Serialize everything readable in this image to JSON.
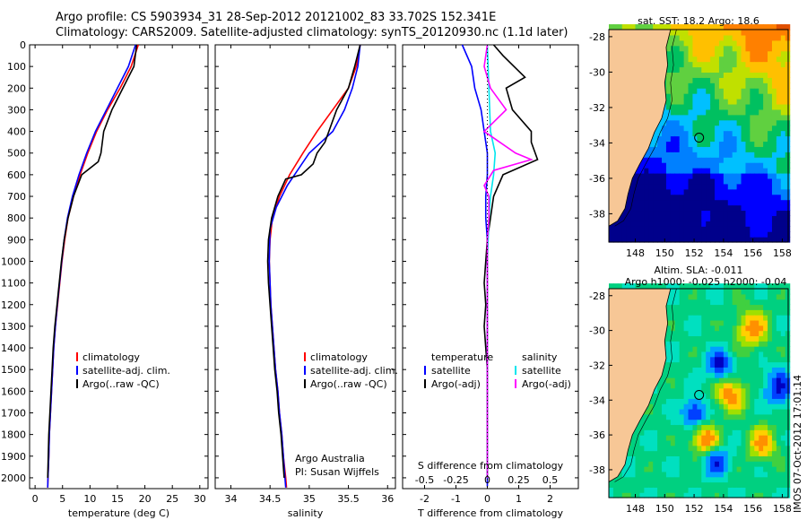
{
  "header": {
    "line1": "Argo profile: CS 5903934_31 28-Sep-2012 20121002_83 33.702S 152.341E",
    "line2": "Climatology: CARS2009. Satellite-adjusted climatology: synTS_20120930.nc (1.1d later)"
  },
  "footer_stamp": "IMOS 07-Oct-2012 17:01:14",
  "colors": {
    "climatology": "#ff0000",
    "satellite": "#0000ff",
    "argo": "#000000",
    "sal_satellite": "#00e5ee",
    "sal_argo": "#ff00ff",
    "land": "#f7c796"
  },
  "chart_data": [
    {
      "id": "temperature",
      "type": "line",
      "xlabel": "temperature (deg C)",
      "xlim": [
        -1,
        31.5
      ],
      "xticks": [
        "0",
        "5",
        "10",
        "15",
        "20",
        "25",
        "30"
      ],
      "ylim": [
        2050,
        0
      ],
      "yticks": [
        "0",
        "100",
        "200",
        "300",
        "400",
        "500",
        "600",
        "700",
        "800",
        "900",
        "1000",
        "1100",
        "1200",
        "1300",
        "1400",
        "1500",
        "1600",
        "1700",
        "1800",
        "1900",
        "2000"
      ],
      "legend": [
        "climatology",
        "satellite-adj. clim.",
        "Argo(..raw -QC)"
      ],
      "series": [
        {
          "name": "climatology",
          "color": "#ff0000",
          "points": [
            [
              18.8,
              0
            ],
            [
              17.5,
              100
            ],
            [
              15.5,
              200
            ],
            [
              13.2,
              300
            ],
            [
              11.2,
              400
            ],
            [
              9.6,
              500
            ],
            [
              8.2,
              600
            ],
            [
              7,
              700
            ],
            [
              6,
              800
            ],
            [
              5.4,
              900
            ],
            [
              4.9,
              1000
            ],
            [
              4.5,
              1100
            ],
            [
              4.1,
              1200
            ],
            [
              3.7,
              1300
            ],
            [
              3.4,
              1400
            ],
            [
              3.2,
              1500
            ],
            [
              3,
              1600
            ],
            [
              2.8,
              1700
            ],
            [
              2.6,
              1800
            ],
            [
              2.5,
              1900
            ],
            [
              2.35,
              2000
            ],
            [
              2.3,
              2045
            ]
          ]
        },
        {
          "name": "satellite-adj. clim.",
          "color": "#0000ff",
          "points": [
            [
              18.3,
              0
            ],
            [
              17,
              100
            ],
            [
              15,
              200
            ],
            [
              13,
              300
            ],
            [
              11,
              400
            ],
            [
              9.4,
              500
            ],
            [
              8,
              600
            ],
            [
              6.8,
              700
            ],
            [
              5.9,
              800
            ],
            [
              5.3,
              900
            ],
            [
              4.85,
              1000
            ],
            [
              4.45,
              1100
            ],
            [
              4.05,
              1200
            ],
            [
              3.7,
              1300
            ],
            [
              3.4,
              1400
            ],
            [
              3.2,
              1500
            ],
            [
              3,
              1600
            ],
            [
              2.8,
              1700
            ],
            [
              2.6,
              1800
            ],
            [
              2.5,
              1900
            ],
            [
              2.35,
              2000
            ],
            [
              2.3,
              2045
            ]
          ]
        },
        {
          "name": "Argo(..raw -QC)",
          "color": "#000000",
          "points": [
            [
              18.5,
              0
            ],
            [
              18,
              100
            ],
            [
              16,
              200
            ],
            [
              14,
              300
            ],
            [
              12.5,
              400
            ],
            [
              12,
              500
            ],
            [
              11.5,
              540
            ],
            [
              8.5,
              600
            ],
            [
              7,
              700
            ],
            [
              6,
              800
            ],
            [
              5.3,
              900
            ],
            [
              4.8,
              1000
            ],
            [
              4.4,
              1100
            ],
            [
              4,
              1200
            ],
            [
              3.6,
              1300
            ],
            [
              3.3,
              1400
            ],
            [
              3.1,
              1500
            ],
            [
              2.9,
              1600
            ],
            [
              2.7,
              1700
            ],
            [
              2.5,
              1800
            ],
            [
              2.4,
              1900
            ],
            [
              2.3,
              2000
            ]
          ]
        }
      ]
    },
    {
      "id": "salinity",
      "type": "line",
      "xlabel": "salinity",
      "xlim": [
        33.8,
        36.1
      ],
      "xticks": [
        "34",
        "34.5",
        "35",
        "35.5",
        "36"
      ],
      "ylim": [
        2050,
        0
      ],
      "legend": [
        "climatology",
        "satellite-adj. clim.",
        "Argo(..raw -QC)"
      ],
      "annotation": [
        "Argo Australia",
        "PI: Susan Wijffels"
      ],
      "series": [
        {
          "name": "climatology",
          "color": "#ff0000",
          "points": [
            [
              35.65,
              0
            ],
            [
              35.6,
              100
            ],
            [
              35.5,
              200
            ],
            [
              35.3,
              300
            ],
            [
              35.1,
              400
            ],
            [
              34.92,
              500
            ],
            [
              34.75,
              600
            ],
            [
              34.62,
              700
            ],
            [
              34.53,
              800
            ],
            [
              34.5,
              900
            ],
            [
              34.49,
              1000
            ],
            [
              34.5,
              1100
            ],
            [
              34.51,
              1200
            ],
            [
              34.53,
              1300
            ],
            [
              34.55,
              1400
            ],
            [
              34.57,
              1500
            ],
            [
              34.6,
              1600
            ],
            [
              34.62,
              1700
            ],
            [
              34.65,
              1800
            ],
            [
              34.67,
              1900
            ],
            [
              34.7,
              2000
            ],
            [
              34.71,
              2045
            ]
          ]
        },
        {
          "name": "satellite-adj. clim.",
          "color": "#0000ff",
          "points": [
            [
              35.65,
              0
            ],
            [
              35.62,
              100
            ],
            [
              35.55,
              200
            ],
            [
              35.45,
              300
            ],
            [
              35.3,
              400
            ],
            [
              35.15,
              450
            ],
            [
              35,
              500
            ],
            [
              34.85,
              580
            ],
            [
              34.72,
              650
            ],
            [
              34.58,
              750
            ],
            [
              34.5,
              850
            ],
            [
              34.49,
              1000
            ],
            [
              34.5,
              1100
            ],
            [
              34.51,
              1200
            ],
            [
              34.53,
              1300
            ],
            [
              34.55,
              1400
            ],
            [
              34.57,
              1500
            ],
            [
              34.6,
              1600
            ],
            [
              34.62,
              1700
            ],
            [
              34.65,
              1800
            ],
            [
              34.67,
              1900
            ],
            [
              34.69,
              2000
            ],
            [
              34.7,
              2045
            ]
          ]
        },
        {
          "name": "Argo(..raw -QC)",
          "color": "#000000",
          "points": [
            [
              35.65,
              0
            ],
            [
              35.58,
              100
            ],
            [
              35.5,
              200
            ],
            [
              35.35,
              300
            ],
            [
              35.25,
              400
            ],
            [
              35.2,
              450
            ],
            [
              35.1,
              500
            ],
            [
              35.05,
              550
            ],
            [
              34.9,
              600
            ],
            [
              34.7,
              620
            ],
            [
              34.6,
              700
            ],
            [
              34.52,
              800
            ],
            [
              34.48,
              900
            ],
            [
              34.47,
              1000
            ],
            [
              34.48,
              1100
            ],
            [
              34.5,
              1200
            ],
            [
              34.52,
              1300
            ],
            [
              34.54,
              1400
            ],
            [
              34.56,
              1500
            ],
            [
              34.59,
              1600
            ],
            [
              34.61,
              1700
            ],
            [
              34.64,
              1800
            ],
            [
              34.66,
              1900
            ],
            [
              34.68,
              2000
            ]
          ]
        }
      ]
    },
    {
      "id": "difference",
      "type": "line",
      "xlabel": "T difference from climatology",
      "xlabel2": "S difference from climatology",
      "xlim": [
        -2.7,
        2.9
      ],
      "xticks": [
        "-2",
        "-1",
        "0",
        "1",
        "2"
      ],
      "xticks2": [
        "-0.5",
        "-0.25",
        "0",
        "0.25",
        "0.5"
      ],
      "ylim": [
        2050,
        0
      ],
      "legend_temperature": [
        "temperature",
        "satellite",
        "Argo(-adj)"
      ],
      "legend_salinity": [
        "salinity",
        "satellite",
        "Argo(-adj)"
      ],
      "series": [
        {
          "name": "satellite",
          "group": "temperature",
          "color": "#0000ff",
          "points": [
            [
              -0.8,
              0
            ],
            [
              -0.5,
              100
            ],
            [
              -0.4,
              200
            ],
            [
              -0.2,
              300
            ],
            [
              -0.1,
              400
            ],
            [
              0,
              500
            ],
            [
              0,
              600
            ],
            [
              -0.05,
              700
            ],
            [
              -0.05,
              800
            ],
            [
              0,
              900
            ],
            [
              0,
              1000
            ],
            [
              0,
              1200
            ],
            [
              0,
              1500
            ],
            [
              0,
              2040
            ]
          ]
        },
        {
          "name": "Argo(-adj)",
          "group": "temperature",
          "color": "#000000",
          "points": [
            [
              0.2,
              0
            ],
            [
              0.5,
              50
            ],
            [
              1.2,
              150
            ],
            [
              0.6,
              200
            ],
            [
              0.8,
              300
            ],
            [
              1.4,
              400
            ],
            [
              1.4,
              450
            ],
            [
              1.6,
              530
            ],
            [
              0.5,
              600
            ],
            [
              0.2,
              700
            ],
            [
              0.1,
              800
            ],
            [
              0,
              900
            ],
            [
              -0.05,
              1000
            ],
            [
              -0.1,
              1100
            ],
            [
              -0.05,
              1200
            ],
            [
              -0.1,
              1300
            ],
            [
              -0.05,
              1400
            ],
            [
              0,
              1500
            ],
            [
              0,
              1600
            ],
            [
              0,
              1700
            ],
            [
              0,
              1800
            ],
            [
              0,
              1900
            ],
            [
              0,
              2000
            ]
          ]
        },
        {
          "name": "satellite",
          "group": "salinity",
          "color": "#00e5ee",
          "points": [
            [
              0,
              0
            ],
            [
              0.05,
              200
            ],
            [
              0.1,
              400
            ],
            [
              0.25,
              500
            ],
            [
              0.2,
              600
            ],
            [
              0.1,
              700
            ],
            [
              0.05,
              800
            ],
            [
              0,
              1000
            ],
            [
              0,
              1500
            ],
            [
              0,
              2000
            ]
          ]
        },
        {
          "name": "Argo(-adj)",
          "group": "salinity",
          "color": "#ff00ff",
          "points": [
            [
              0,
              0
            ],
            [
              -0.1,
              100
            ],
            [
              0.1,
              200
            ],
            [
              0.6,
              300
            ],
            [
              -0.1,
              400
            ],
            [
              0.9,
              500
            ],
            [
              1.4,
              530
            ],
            [
              0.2,
              580
            ],
            [
              -0.1,
              650
            ],
            [
              0.05,
              700
            ],
            [
              0.05,
              800
            ],
            [
              0,
              900
            ],
            [
              0,
              1000
            ],
            [
              0,
              1500
            ],
            [
              0,
              2000
            ]
          ]
        }
      ]
    },
    {
      "id": "sst_map",
      "type": "heatmap",
      "title": "sat. SST: 18.2 Argo: 18.6",
      "xticks": [
        "148",
        "150",
        "152",
        "154",
        "156",
        "158"
      ],
      "yticks": [
        "-28",
        "-30",
        "-32",
        "-34",
        "-36",
        "-38"
      ],
      "xlim": [
        146.2,
        158.4
      ],
      "ylim": [
        -39.6,
        -27.6
      ],
      "argo_position": [
        152.341,
        -33.702
      ]
    },
    {
      "id": "sla_map",
      "type": "heatmap",
      "title": "Altim. SLA: -0.011",
      "subtitle": "Argo h1000: -0.025 h2000: -0.04",
      "xticks": [
        "148",
        "150",
        "152",
        "154",
        "156",
        "158"
      ],
      "yticks": [
        "-28",
        "-30",
        "-32",
        "-34",
        "-36",
        "-38"
      ],
      "xlim": [
        146.2,
        158.4
      ],
      "ylim": [
        -39.6,
        -27.6
      ],
      "argo_position": [
        152.341,
        -33.702
      ]
    }
  ]
}
